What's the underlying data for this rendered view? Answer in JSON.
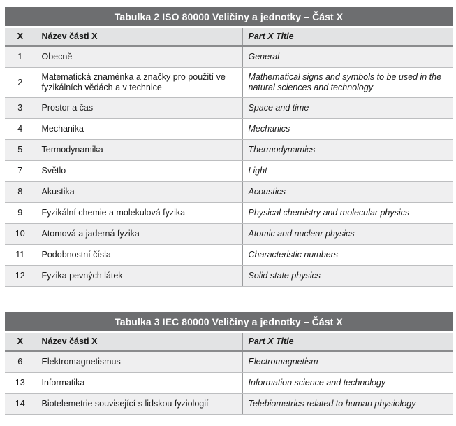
{
  "table1": {
    "title": "Tabulka 2  ISO 80000 Veličiny a jednotky – Část X",
    "headers": {
      "x": "X",
      "cz": "Název části X",
      "en": "Part X Title"
    },
    "rows": [
      {
        "x": "1",
        "cz": "Obecně",
        "en": "General"
      },
      {
        "x": "2",
        "cz": "Matematická znaménka a značky pro použití ve fyzikálních vědách a v technice",
        "en": "Mathematical signs and symbols to be used in the natural sciences and technology"
      },
      {
        "x": "3",
        "cz": "Prostor a čas",
        "en": "Space and time"
      },
      {
        "x": "4",
        "cz": "Mechanika",
        "en": "Mechanics"
      },
      {
        "x": "5",
        "cz": "Termodynamika",
        "en": "Thermodynamics"
      },
      {
        "x": "7",
        "cz": "Světlo",
        "en": "Light"
      },
      {
        "x": "8",
        "cz": "Akustika",
        "en": "Acoustics"
      },
      {
        "x": "9",
        "cz": "Fyzikální chemie a molekulová fyzika",
        "en": "Physical chemistry and molecular physics"
      },
      {
        "x": "10",
        "cz": "Atomová a jaderná fyzika",
        "en": "Atomic and nuclear physics"
      },
      {
        "x": "11",
        "cz": "Podobnostní čísla",
        "en": "Characteristic numbers"
      },
      {
        "x": "12",
        "cz": "Fyzika pevných látek",
        "en": "Solid state physics"
      }
    ]
  },
  "table2": {
    "title": "Tabulka 3  IEC 80000 Veličiny a jednotky – Část X",
    "headers": {
      "x": "X",
      "cz": "Název části X",
      "en": "Part X Title"
    },
    "rows": [
      {
        "x": "6",
        "cz": "Elektromagnetismus",
        "en": "Electromagnetism"
      },
      {
        "x": "13",
        "cz": "Informatika",
        "en": "Information science and technology"
      },
      {
        "x": "14",
        "cz": "Biotelemetrie související s lidskou fyziologií",
        "en": "Telebiometrics related to human physiology"
      }
    ]
  }
}
